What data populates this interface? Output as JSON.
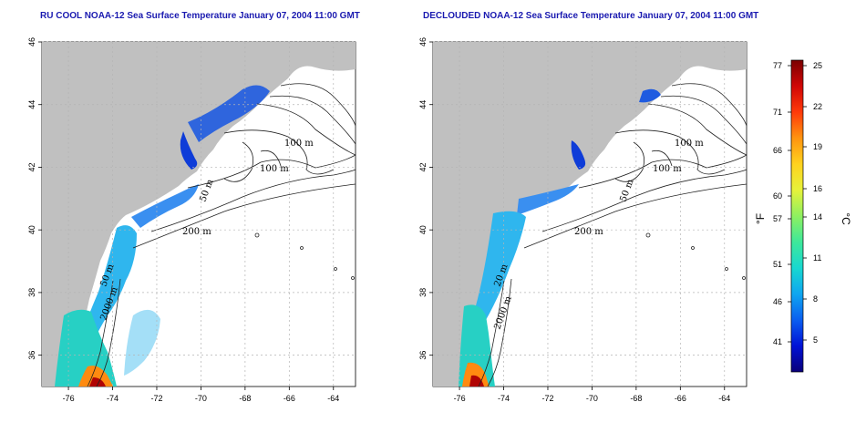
{
  "left_panel": {
    "title": "RU COOL NOAA-12 Sea Surface Temperature January 07, 2004 11:00 GMT"
  },
  "right_panel": {
    "title": "DECLOUDED NOAA-12 Sea Surface Temperature January 07, 2004 11:00 GMT"
  },
  "axes": {
    "x_ticks": [
      "-76",
      "-74",
      "-72",
      "-70",
      "-68",
      "-66",
      "-64"
    ],
    "y_ticks": [
      "36",
      "38",
      "40",
      "42",
      "44",
      "46"
    ]
  },
  "contour_labels": {
    "left": [
      "100 m",
      "100 m",
      "50 m",
      "200 m",
      "50 m",
      "2000 m"
    ],
    "right": [
      "100 m",
      "100 m",
      "50 m",
      "200 m",
      "20 m",
      "2000 m"
    ]
  },
  "colorbar": {
    "f_label": "°F",
    "c_label": "°C",
    "f_ticks": [
      "77",
      "71",
      "66",
      "60",
      "57",
      "51",
      "46",
      "41"
    ],
    "c_ticks": [
      "25",
      "22",
      "19",
      "16",
      "14",
      "11",
      "8",
      "5"
    ],
    "gradient": [
      "#0a007a",
      "#0012d6",
      "#0a5ef0",
      "#0fa6f0",
      "#18d8d0",
      "#3ee89a",
      "#8ef060",
      "#e6f23a",
      "#ffd21e",
      "#ff9410",
      "#ff3a0a",
      "#d00606",
      "#7a0000"
    ]
  },
  "colors": {
    "land": "#c0c0c0",
    "title": "#1a1ab0",
    "grid": "#b4b4b4"
  }
}
